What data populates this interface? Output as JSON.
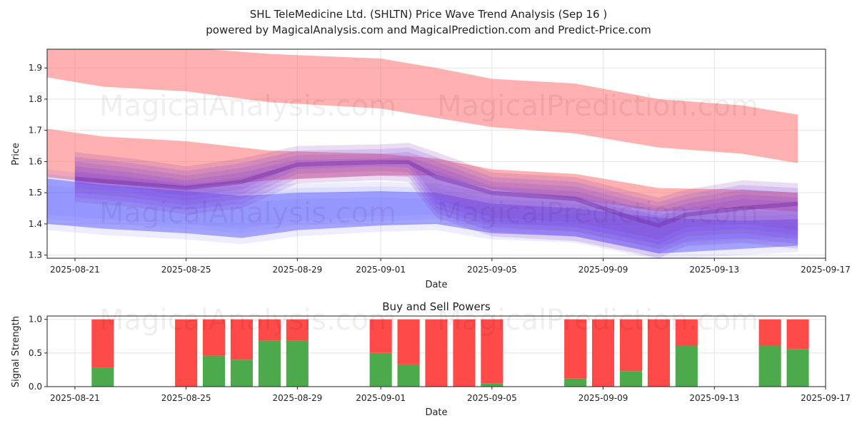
{
  "chart_data": [
    {
      "type": "area",
      "title": "SHL TeleMedicine Ltd. (SHLTN) Price Wave Trend Analysis (Sep 16 )",
      "subtitle": "powered by MagicalAnalysis.com and MagicalPrediction.com and Predict-Price.com",
      "xlabel": "Date",
      "ylabel": "Price",
      "xlim": [
        "2025-08-20",
        "2025-09-17"
      ],
      "ylim": [
        1.29,
        1.96
      ],
      "yticks": [
        1.3,
        1.4,
        1.5,
        1.6,
        1.7,
        1.8,
        1.9
      ],
      "xticks": [
        "2025-08-21",
        "2025-08-25",
        "2025-08-29",
        "2025-09-01",
        "2025-09-05",
        "2025-09-09",
        "2025-09-13",
        "2025-09-17"
      ],
      "grid": true,
      "series": [
        {
          "name": "upper-red-band",
          "color": "#ff7070",
          "x": [
            "2025-08-20",
            "2025-08-22",
            "2025-08-25",
            "2025-08-28",
            "2025-09-01",
            "2025-09-03",
            "2025-09-05",
            "2025-09-08",
            "2025-09-11",
            "2025-09-14",
            "2025-09-16"
          ],
          "upper": [
            1.97,
            1.97,
            1.965,
            1.945,
            1.93,
            1.9,
            1.865,
            1.85,
            1.8,
            1.78,
            1.75
          ],
          "lower": [
            1.87,
            1.84,
            1.825,
            1.79,
            1.77,
            1.74,
            1.71,
            1.69,
            1.645,
            1.625,
            1.595
          ]
        },
        {
          "name": "middle-red-band",
          "color": "#ff7070",
          "x": [
            "2025-08-20",
            "2025-08-22",
            "2025-08-25",
            "2025-08-28",
            "2025-09-01",
            "2025-09-03",
            "2025-09-05",
            "2025-09-08",
            "2025-09-11",
            "2025-09-14",
            "2025-09-16"
          ],
          "upper": [
            1.705,
            1.68,
            1.665,
            1.635,
            1.625,
            1.61,
            1.575,
            1.56,
            1.515,
            1.51,
            1.5
          ],
          "lower": [
            1.55,
            1.53,
            1.515,
            1.54,
            1.555,
            1.555,
            1.51,
            1.48,
            1.44,
            1.45,
            1.44
          ]
        },
        {
          "name": "lower-blue-band",
          "color": "#5a5aff",
          "x": [
            "2025-08-20",
            "2025-08-22",
            "2025-08-25",
            "2025-08-27",
            "2025-08-29",
            "2025-09-01",
            "2025-09-03",
            "2025-09-05",
            "2025-09-08",
            "2025-09-11",
            "2025-09-14",
            "2025-09-16"
          ],
          "upper": [
            1.545,
            1.525,
            1.505,
            1.49,
            1.5,
            1.505,
            1.5,
            1.465,
            1.45,
            1.42,
            1.41,
            1.415
          ],
          "lower": [
            1.4,
            1.385,
            1.37,
            1.355,
            1.38,
            1.395,
            1.4,
            1.37,
            1.36,
            1.305,
            1.32,
            1.33
          ]
        },
        {
          "name": "purple-wave-band",
          "color": "#8a3fb0",
          "x": [
            "2025-08-21",
            "2025-08-23",
            "2025-08-25",
            "2025-08-27",
            "2025-08-29",
            "2025-09-01",
            "2025-09-02",
            "2025-09-03",
            "2025-09-05",
            "2025-09-08",
            "2025-09-10",
            "2025-09-11",
            "2025-09-12",
            "2025-09-14",
            "2025-09-16"
          ],
          "upper": [
            1.6,
            1.58,
            1.555,
            1.58,
            1.62,
            1.625,
            1.63,
            1.6,
            1.535,
            1.52,
            1.475,
            1.455,
            1.48,
            1.51,
            1.5
          ],
          "lower": [
            1.5,
            1.485,
            1.46,
            1.48,
            1.56,
            1.57,
            1.565,
            1.45,
            1.39,
            1.375,
            1.34,
            1.32,
            1.36,
            1.37,
            1.35
          ]
        },
        {
          "name": "purple-wave-line",
          "color": "#7a2fa8",
          "x": [
            "2025-08-21",
            "2025-08-23",
            "2025-08-25",
            "2025-08-27",
            "2025-08-29",
            "2025-09-01",
            "2025-09-02",
            "2025-09-03",
            "2025-09-05",
            "2025-09-08",
            "2025-09-10",
            "2025-09-11",
            "2025-09-12",
            "2025-09-14",
            "2025-09-16"
          ],
          "values": [
            1.545,
            1.53,
            1.515,
            1.535,
            1.59,
            1.598,
            1.598,
            1.55,
            1.5,
            1.48,
            1.42,
            1.395,
            1.43,
            1.45,
            1.465
          ]
        }
      ]
    },
    {
      "type": "bar",
      "title": "Buy and Sell Powers",
      "xlabel": "Date",
      "ylabel": "Signal Strength",
      "ylim": [
        0,
        1.05
      ],
      "yticks": [
        0.0,
        0.5,
        1.0
      ],
      "xlim": [
        "2025-08-20",
        "2025-09-17"
      ],
      "xticks": [
        "2025-08-21",
        "2025-08-25",
        "2025-08-29",
        "2025-09-01",
        "2025-09-05",
        "2025-09-09",
        "2025-09-13",
        "2025-09-17"
      ],
      "series": [
        {
          "name": "Buy",
          "color": "#4caa4c"
        },
        {
          "name": "Sell",
          "color": "#ff4a4a"
        }
      ],
      "bars": [
        {
          "date": "2025-08-22",
          "buy": 0.28
        },
        {
          "date": "2025-08-25",
          "buy": 0.0
        },
        {
          "date": "2025-08-26",
          "buy": 0.46
        },
        {
          "date": "2025-08-27",
          "buy": 0.4
        },
        {
          "date": "2025-08-28",
          "buy": 0.68
        },
        {
          "date": "2025-08-29",
          "buy": 0.68
        },
        {
          "date": "2025-09-01",
          "buy": 0.5
        },
        {
          "date": "2025-09-02",
          "buy": 0.33
        },
        {
          "date": "2025-09-03",
          "buy": 0.0
        },
        {
          "date": "2025-09-04",
          "buy": 0.0
        },
        {
          "date": "2025-09-05",
          "buy": 0.05
        },
        {
          "date": "2025-09-08",
          "buy": 0.12
        },
        {
          "date": "2025-09-09",
          "buy": 0.0
        },
        {
          "date": "2025-09-10",
          "buy": 0.23
        },
        {
          "date": "2025-09-11",
          "buy": 0.0
        },
        {
          "date": "2025-09-12",
          "buy": 0.61
        },
        {
          "date": "2025-09-15",
          "buy": 0.61
        },
        {
          "date": "2025-09-16",
          "buy": 0.56
        }
      ]
    }
  ],
  "watermarks": [
    "MagicalAnalysis.com",
    "MagicalPrediction.com"
  ]
}
